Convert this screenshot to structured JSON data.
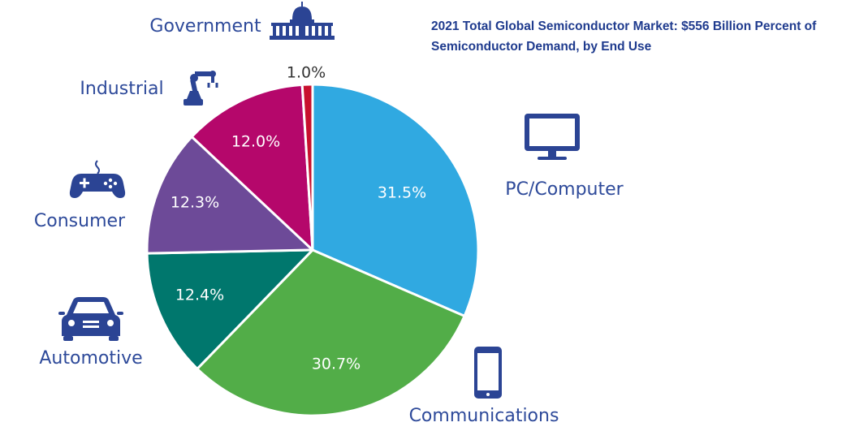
{
  "chart_data": {
    "type": "pie",
    "title": "2021 Total Global Semiconductor Market: $556 Billion Percent of Semiconductor Demand, by End Use",
    "slices": [
      {
        "label": "PC/Computer",
        "value": 31.5,
        "display": "31.5%",
        "color": "#30a9e1",
        "icon": "monitor-icon"
      },
      {
        "label": "Communications",
        "value": 30.7,
        "display": "30.7%",
        "color": "#52ad48",
        "icon": "smartphone-icon"
      },
      {
        "label": "Automotive",
        "value": 12.4,
        "display": "12.4%",
        "color": "#00776d",
        "icon": "car-icon"
      },
      {
        "label": "Consumer",
        "value": 12.3,
        "display": "12.3%",
        "color": "#6d4a98",
        "icon": "gamepad-icon"
      },
      {
        "label": "Industrial",
        "value": 12.0,
        "display": "12.0%",
        "color": "#b5076b",
        "icon": "robot-arm-icon"
      },
      {
        "label": "Government",
        "value": 1.0,
        "display": "1.0%",
        "color": "#c8102e",
        "icon": "capitol-building-icon"
      }
    ],
    "start_angle": "12 o'clock",
    "direction": "clockwise",
    "legend": "none"
  }
}
